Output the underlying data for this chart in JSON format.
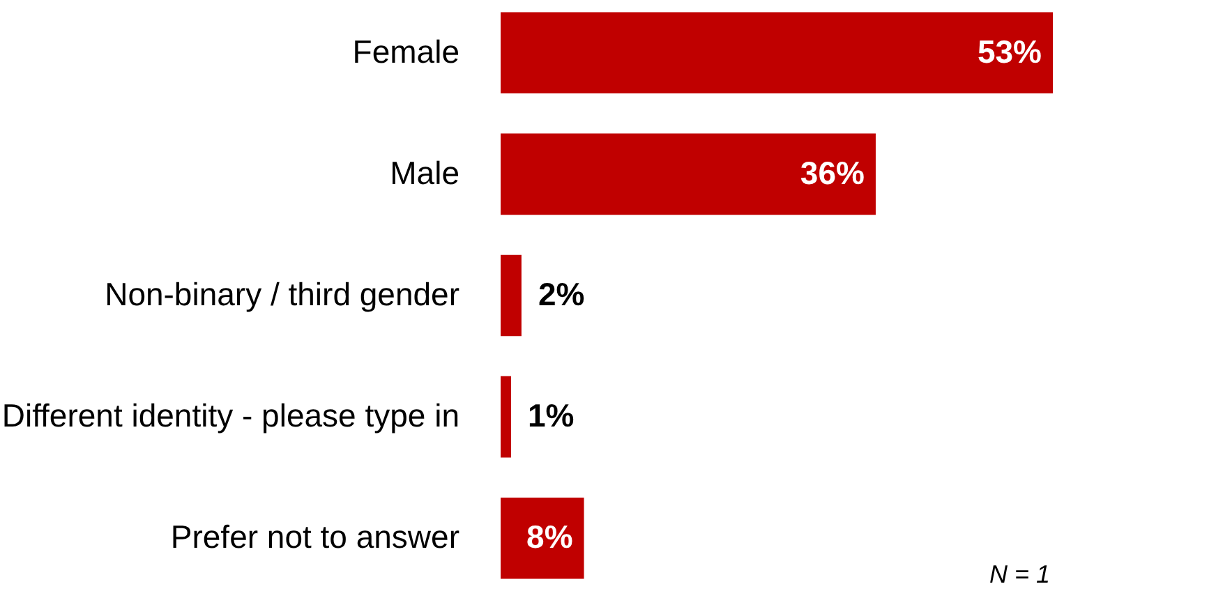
{
  "chart_data": {
    "type": "bar",
    "orientation": "horizontal",
    "categories": [
      "Female",
      "Male",
      "Non-binary / third gender",
      "Different identity - please type in",
      "Prefer not to answer"
    ],
    "values": [
      53,
      36,
      2,
      1,
      8
    ],
    "value_labels": [
      "53%",
      "36%",
      "2%",
      "1%",
      "8%"
    ],
    "color": "#c00000",
    "annotations": [
      "N = 1"
    ],
    "grid": false
  }
}
